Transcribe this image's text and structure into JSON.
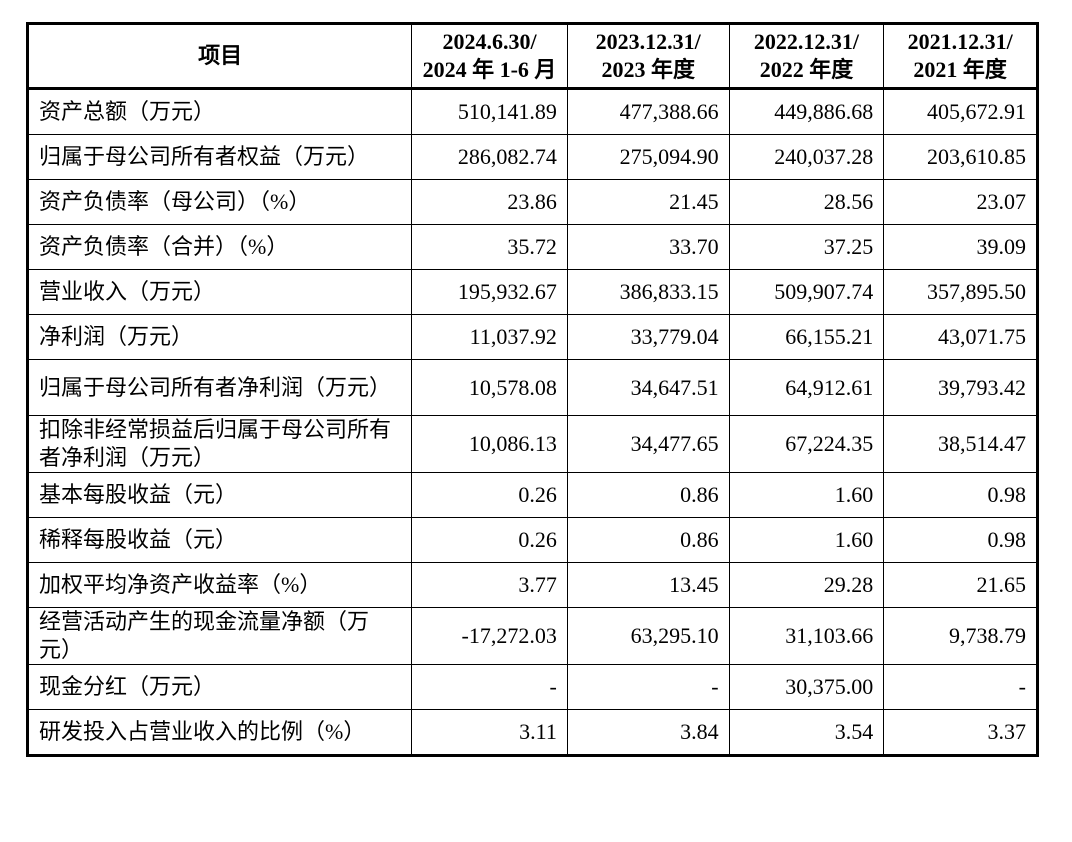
{
  "header": {
    "item": "项目",
    "periods": [
      {
        "line1": "2024.6.30/",
        "line2": "2024 年 1-6 月"
      },
      {
        "line1": "2023.12.31/",
        "line2": "2023 年度"
      },
      {
        "line1": "2022.12.31/",
        "line2": "2022 年度"
      },
      {
        "line1": "2021.12.31/",
        "line2": "2021 年度"
      }
    ]
  },
  "rows": [
    {
      "label": "资产总额（万元）",
      "values": [
        "510,141.89",
        "477,388.66",
        "449,886.68",
        "405,672.91"
      ]
    },
    {
      "label": "归属于母公司所有者权益（万元）",
      "values": [
        "286,082.74",
        "275,094.90",
        "240,037.28",
        "203,610.85"
      ]
    },
    {
      "label": "资产负债率（母公司）（%）",
      "values": [
        "23.86",
        "21.45",
        "28.56",
        "23.07"
      ]
    },
    {
      "label": "资产负债率（合并）（%）",
      "values": [
        "35.72",
        "33.70",
        "37.25",
        "39.09"
      ]
    },
    {
      "label": "营业收入（万元）",
      "values": [
        "195,932.67",
        "386,833.15",
        "509,907.74",
        "357,895.50"
      ]
    },
    {
      "label": "净利润（万元）",
      "values": [
        "11,037.92",
        "33,779.04",
        "66,155.21",
        "43,071.75"
      ]
    },
    {
      "label": "归属于母公司所有者净利润（万元）",
      "values": [
        "10,578.08",
        "34,647.51",
        "64,912.61",
        "39,793.42"
      ]
    },
    {
      "label": "扣除非经常损益后归属于母公司所有者净利润（万元）",
      "values": [
        "10,086.13",
        "34,477.65",
        "67,224.35",
        "38,514.47"
      ]
    },
    {
      "label": "基本每股收益（元）",
      "values": [
        "0.26",
        "0.86",
        "1.60",
        "0.98"
      ]
    },
    {
      "label": "稀释每股收益（元）",
      "values": [
        "0.26",
        "0.86",
        "1.60",
        "0.98"
      ]
    },
    {
      "label": "加权平均净资产收益率（%）",
      "values": [
        "3.77",
        "13.45",
        "29.28",
        "21.65"
      ]
    },
    {
      "label": "经营活动产生的现金流量净额（万元）",
      "values": [
        "-17,272.03",
        "63,295.10",
        "31,103.66",
        "9,738.79"
      ]
    },
    {
      "label": "现金分红（万元）",
      "values": [
        "-",
        "-",
        "30,375.00",
        "-"
      ]
    },
    {
      "label": "研发投入占营业收入的比例（%）",
      "values": [
        "3.11",
        "3.84",
        "3.54",
        "3.37"
      ]
    }
  ]
}
